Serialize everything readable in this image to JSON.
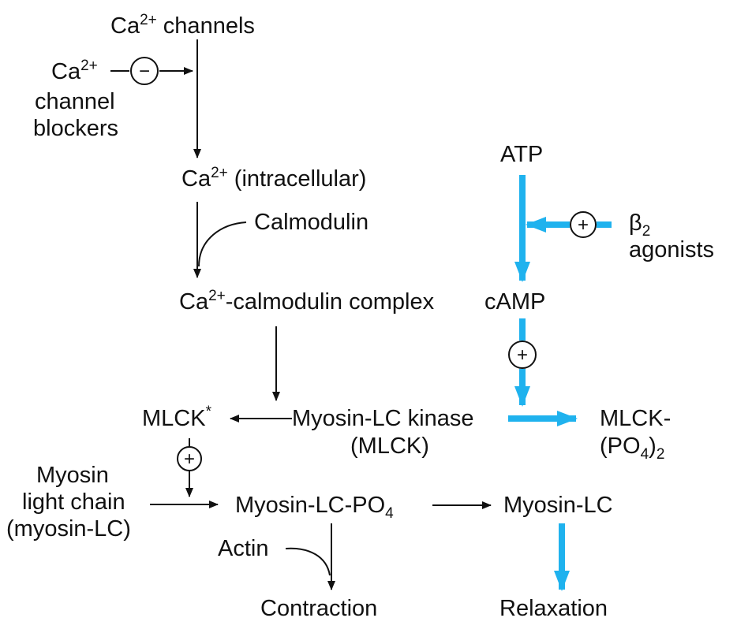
{
  "colors": {
    "pathway_blue": "#1fb2ee",
    "ink": "#111111",
    "background": "#ffffff"
  },
  "nodes": {
    "ca_channels": {
      "base": "Ca",
      "sup": "2+",
      "rest": " channels"
    },
    "blockers": {
      "base": "Ca",
      "sup": "2+",
      "line2": "channel",
      "line3": "blockers"
    },
    "ca_intracellular": {
      "base": "Ca",
      "sup": "2+",
      "rest": " (intracellular)"
    },
    "calmodulin": "Calmodulin",
    "ca_calmodulin_complex": {
      "base": "Ca",
      "sup": "2+",
      "rest": "-calmodulin complex"
    },
    "atp": "ATP",
    "beta2_agonists": {
      "base": "β",
      "sub": "2",
      "line2": "agonists"
    },
    "camp": "cAMP",
    "mlck_star": {
      "base": "MLCK",
      "mark": "*"
    },
    "myosin_lc_kinase": {
      "line1": "Myosin-LC kinase",
      "line2": "(MLCK)"
    },
    "mlck_po4": {
      "line1": "MLCK-",
      "line2_base": "(PO",
      "line2_sub": "4",
      "line2_end": ")",
      "line2_sub2": "2"
    },
    "myosin_light_chain": {
      "line1": "Myosin",
      "line2": "light chain",
      "line3": "(myosin-LC)"
    },
    "myosin_lc_po4": {
      "base": "Myosin-LC-PO",
      "sub": "4"
    },
    "myosin_lc": "Myosin-LC",
    "actin": "Actin",
    "contraction": "Contraction",
    "relaxation": "Relaxation"
  },
  "signs": {
    "inhibit": "−",
    "stimulate_beta2": "+",
    "stimulate_camp": "+",
    "stimulate_mlck": "+"
  }
}
